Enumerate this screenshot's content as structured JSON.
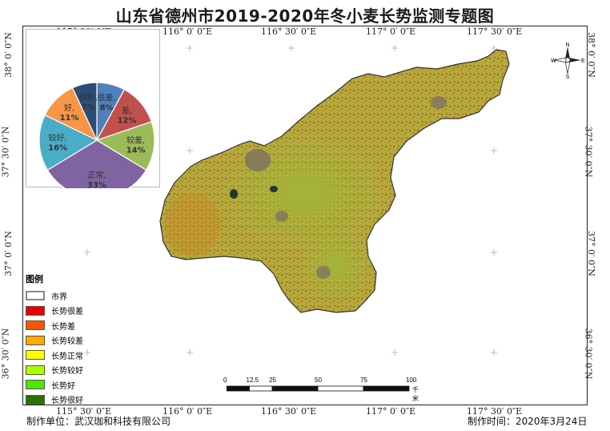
{
  "title": "山东省德州市2019-2020年冬小麦长势监测专题图",
  "coords": {
    "top": [
      "115° 30′ 0″E",
      "116° 0′ 0″E",
      "116° 30′ 0″E",
      "117° 0′ 0″E",
      "117° 30′ 0″E"
    ],
    "bottom": [
      "115° 30′ 0″E",
      "116° 0′ 0″E",
      "116° 30′ 0″E",
      "117° 0′ 0″E",
      "117° 30′ 0″E"
    ],
    "left": [
      "38° 0′ 0″N",
      "37° 30′ 0″N",
      "37° 0′ 0″N",
      "36° 30′ 0″N"
    ],
    "right": [
      "38° 0′ 0″N",
      "37° 30′ 0″N",
      "37° 0′ 0″N",
      "36° 30′ 0″N"
    ]
  },
  "pie": {
    "slices": [
      {
        "label": "很差,",
        "pct": "8%",
        "value": 8,
        "color": "#4f81bd"
      },
      {
        "label": "差,",
        "pct": "12%",
        "value": 12,
        "color": "#c0504d"
      },
      {
        "label": "较差,",
        "pct": "14%",
        "value": 14,
        "color": "#9bbb59"
      },
      {
        "label": "正常,",
        "pct": "33%",
        "value": 33,
        "color": "#8064a2"
      },
      {
        "label": "较好,",
        "pct": "16%",
        "value": 16,
        "color": "#4bacc6"
      },
      {
        "label": "好,",
        "pct": "11%",
        "value": 11,
        "color": "#f79646"
      },
      {
        "label": "很好,",
        "pct": "7%",
        "value": 7,
        "color": "#2c4d75"
      }
    ]
  },
  "legend": {
    "title": "图例",
    "items": [
      {
        "label": "市界",
        "color": "#ffffff",
        "border": "#888888"
      },
      {
        "label": "长势很差",
        "color": "#e60000"
      },
      {
        "label": "长势差",
        "color": "#ff5500"
      },
      {
        "label": "长势较差",
        "color": "#ffaa00"
      },
      {
        "label": "长势正常",
        "color": "#ffff00"
      },
      {
        "label": "长势较好",
        "color": "#aaff00"
      },
      {
        "label": "长势好",
        "color": "#4ce600"
      },
      {
        "label": "长势很好",
        "color": "#267300"
      }
    ]
  },
  "scale": {
    "ticks": [
      "0",
      "12.5",
      "25",
      "50",
      "75",
      "100"
    ],
    "unit": "千米"
  },
  "compass": {
    "n": "N",
    "s": "S",
    "e": "E",
    "w": "W"
  },
  "footer": {
    "unit": "制作单位：武汉珈和科技有限公司",
    "date": "制作时间：2020年3月24日"
  }
}
